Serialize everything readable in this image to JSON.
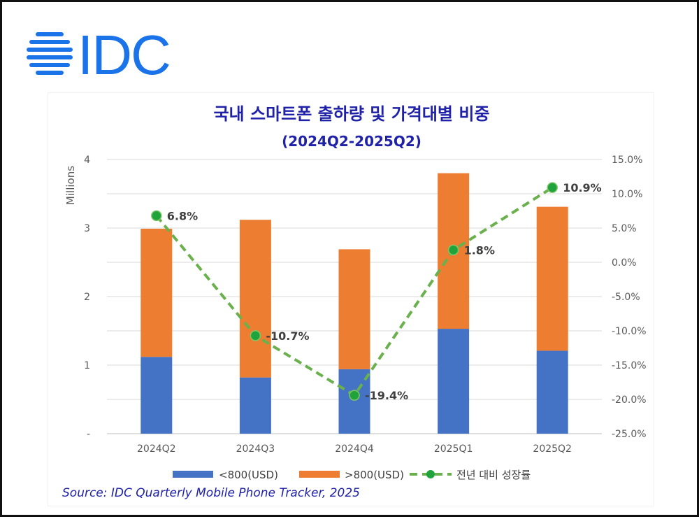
{
  "logo": {
    "text": "IDC",
    "color": "#1a73e8"
  },
  "chart_data": {
    "type": "bar",
    "stacked": true,
    "title": "국내 스마트폰 출하량 및 가격대별 비중",
    "subtitle": "(2024Q2-2025Q2)",
    "categories": [
      "2024Q2",
      "2024Q3",
      "2024Q4",
      "2025Q1",
      "2025Q2"
    ],
    "ylabel": "Millions",
    "ylim": [
      0,
      4
    ],
    "yticks": [
      "-",
      "1",
      "2",
      "3",
      "4"
    ],
    "y2lim": [
      -25,
      15
    ],
    "y2ticks": [
      "-25.0%",
      "-20.0%",
      "-15.0%",
      "-10.0%",
      "-5.0%",
      "0.0%",
      "5.0%",
      "10.0%",
      "15.0%"
    ],
    "grid": true,
    "legend_position": "bottom",
    "series": [
      {
        "name": "<800(USD)",
        "type": "bar",
        "axis": "left",
        "color": "#4472c4",
        "values": [
          1.12,
          0.82,
          0.94,
          1.53,
          1.21
        ]
      },
      {
        "name": ">800(USD)",
        "type": "bar",
        "axis": "left",
        "color": "#ed7d31",
        "values": [
          1.87,
          2.3,
          1.75,
          2.27,
          2.1
        ]
      },
      {
        "name": "전년 대비 성장률",
        "type": "line",
        "axis": "right",
        "color": "#6ab04c",
        "marker_color": "#20a33a",
        "style": "dashed",
        "values": [
          6.8,
          -10.7,
          -19.4,
          1.8,
          10.9
        ],
        "labels": [
          "6.8%",
          "-10.7%",
          "-19.4%",
          "1.8%",
          "10.9%"
        ]
      }
    ],
    "title_color": "#1f22a8"
  },
  "source": "Source: IDC Quarterly Mobile Phone Tracker, 2025"
}
